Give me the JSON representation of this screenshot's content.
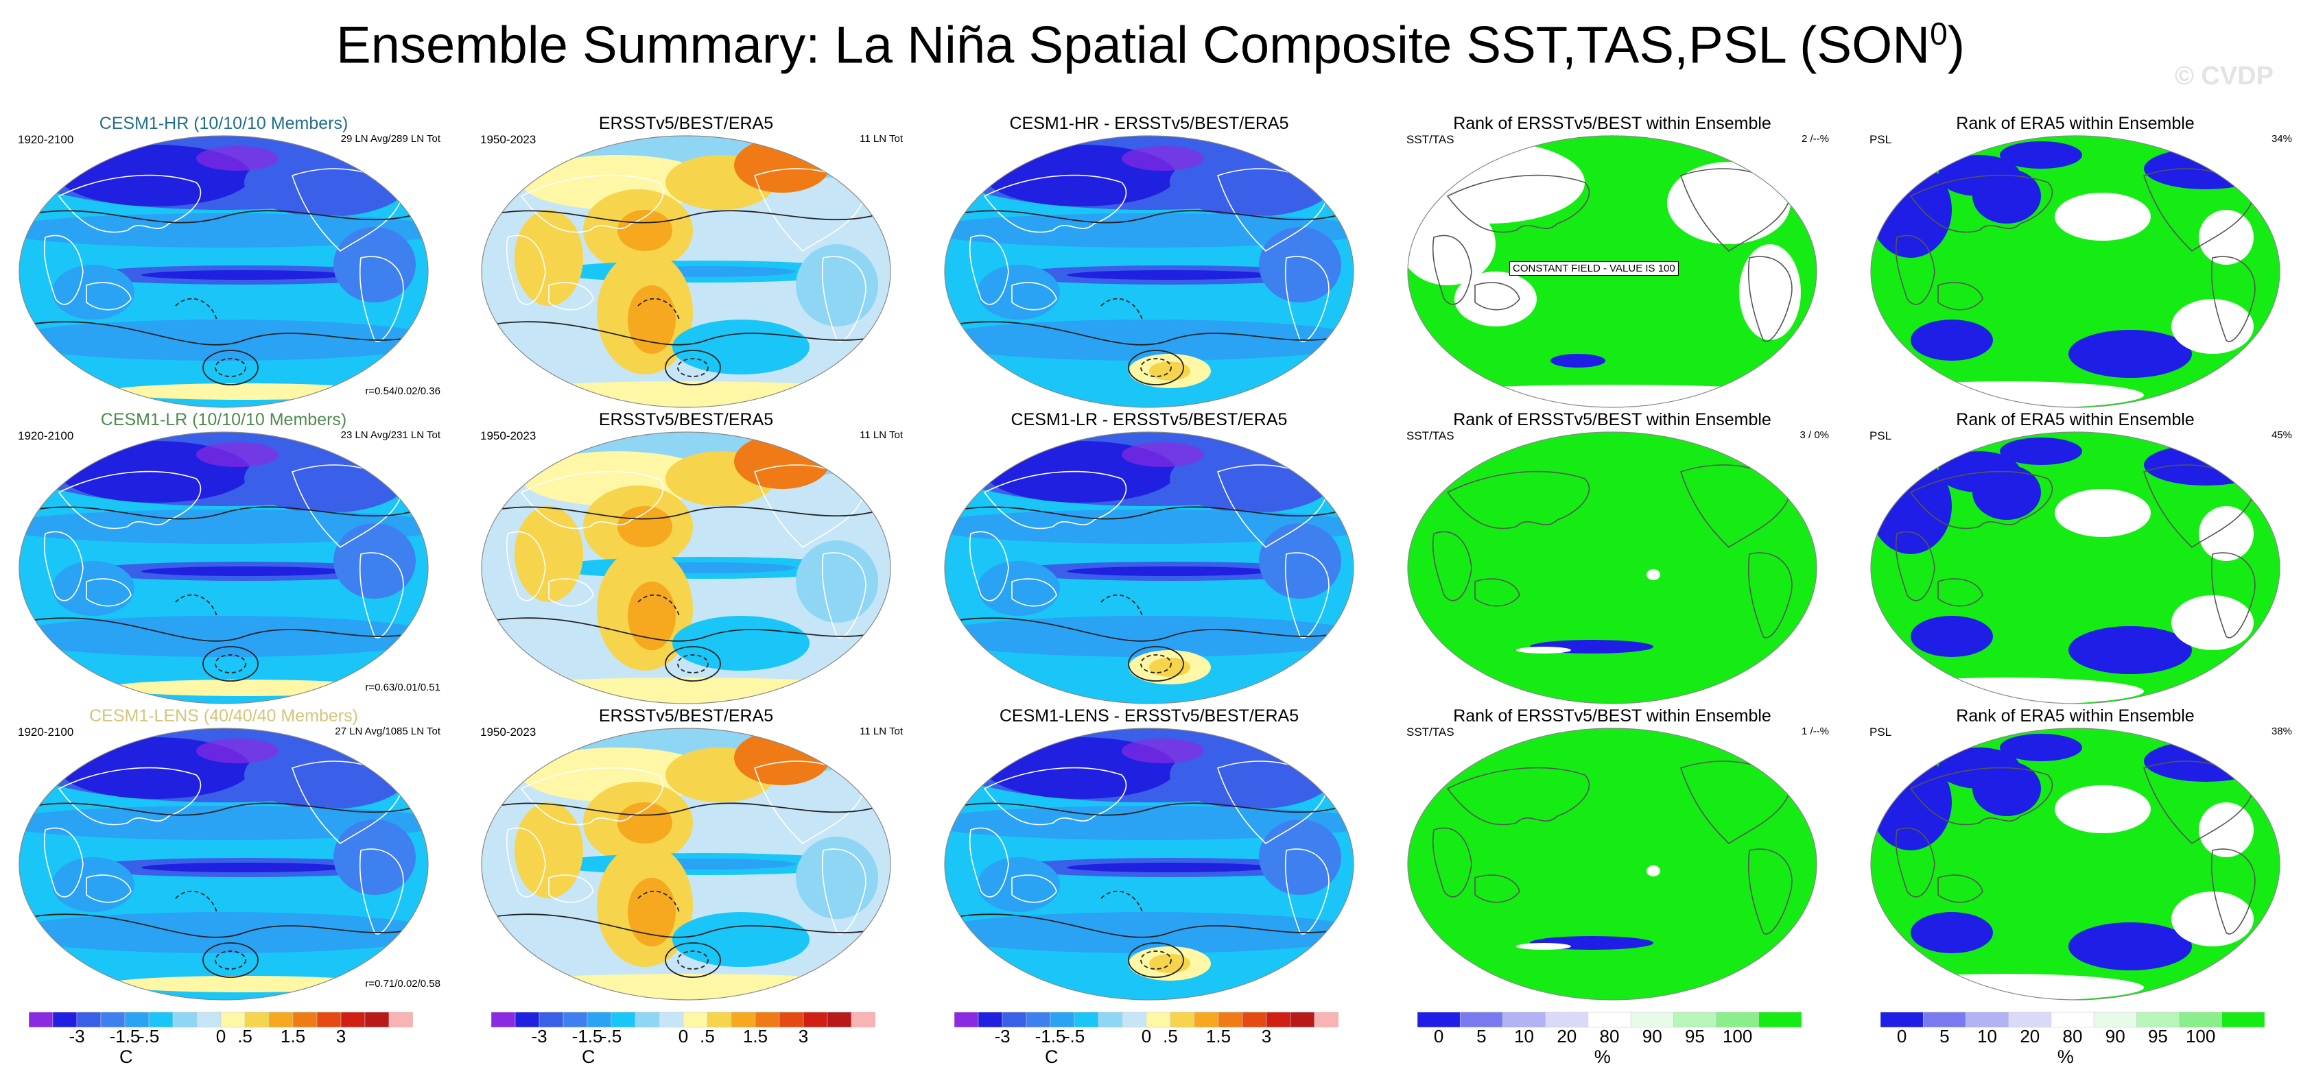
{
  "figure": {
    "title": "Ensemble Summary: La Niña Spatial Composite SST,TAS,PSL (SON",
    "title_sup": "0",
    "title_close": ")",
    "watermark": "© CVDP"
  },
  "panels": [
    {
      "title": "CESM1-HR (10/10/10 Members)",
      "left": "1920-2100",
      "right": "29 LN Avg/289 LN Tot",
      "corr": "r=0.54/0.02/0.36",
      "title_color": "#1f6e8a",
      "map": "anom"
    },
    {
      "title": "ERSSTv5/BEST/ERA5",
      "left": "1950-2023",
      "right": "11 LN Tot",
      "corr": "",
      "title_color": "#000000",
      "map": "obs"
    },
    {
      "title": "CESM1-HR - ERSSTv5/BEST/ERA5",
      "left": "",
      "right": "",
      "corr": "",
      "title_color": "#000000",
      "map": "diff"
    },
    {
      "title": "Rank of ERSSTv5/BEST within Ensemble",
      "left": "SST/TAS",
      "right": "2 /--%",
      "corr": "",
      "title_color": "#000000",
      "map": "rank_const",
      "note": "CONSTANT FIELD - VALUE IS 100"
    },
    {
      "title": "Rank of ERA5 within Ensemble",
      "left": "PSL",
      "right": "34%",
      "corr": "",
      "title_color": "#000000",
      "map": "rank_psl"
    },
    {
      "title": "CESM1-LR (10/10/10 Members)",
      "left": "1920-2100",
      "right": "23 LN Avg/231 LN Tot",
      "corr": "r=0.63/0.01/0.51",
      "title_color": "#4f8a4f",
      "map": "anom"
    },
    {
      "title": "ERSSTv5/BEST/ERA5",
      "left": "1950-2023",
      "right": "11 LN Tot",
      "corr": "",
      "title_color": "#000000",
      "map": "obs"
    },
    {
      "title": "CESM1-LR - ERSSTv5/BEST/ERA5",
      "left": "",
      "right": "",
      "corr": "",
      "title_color": "#000000",
      "map": "diff"
    },
    {
      "title": "Rank of ERSSTv5/BEST within Ensemble",
      "left": "SST/TAS",
      "right": "3 /  0%",
      "corr": "",
      "title_color": "#000000",
      "map": "rank_sst"
    },
    {
      "title": "Rank of ERA5 within Ensemble",
      "left": "PSL",
      "right": "45%",
      "corr": "",
      "title_color": "#000000",
      "map": "rank_psl"
    },
    {
      "title": "CESM1-LENS (40/40/40 Members)",
      "left": "1920-2100",
      "right": "27 LN Avg/1085 LN Tot",
      "corr": "r=0.71/0.02/0.58",
      "title_color": "#d6c47a",
      "map": "anom"
    },
    {
      "title": "ERSSTv5/BEST/ERA5",
      "left": "1950-2023",
      "right": "11 LN Tot",
      "corr": "",
      "title_color": "#000000",
      "map": "obs"
    },
    {
      "title": "CESM1-LENS - ERSSTv5/BEST/ERA5",
      "left": "",
      "right": "",
      "corr": "",
      "title_color": "#000000",
      "map": "diff"
    },
    {
      "title": "Rank of ERSSTv5/BEST within Ensemble",
      "left": "SST/TAS",
      "right": "1 /--%",
      "corr": "",
      "title_color": "#000000",
      "map": "rank_sst"
    },
    {
      "title": "Rank of ERA5 within Ensemble",
      "left": "PSL",
      "right": "38%",
      "corr": "",
      "title_color": "#000000",
      "map": "rank_psl"
    }
  ],
  "colorbars": [
    {
      "kind": "anom",
      "unit": "C"
    },
    {
      "kind": "anom",
      "unit": "C"
    },
    {
      "kind": "anom",
      "unit": "C"
    },
    {
      "kind": "rank",
      "unit": "%"
    },
    {
      "kind": "rank",
      "unit": "%"
    }
  ],
  "chart_data": {
    "type": "heatmap",
    "title": "Ensemble Summary: La Niña Spatial Composite SST,TAS,PSL (SON0)",
    "variables": [
      "SST",
      "TAS",
      "PSL"
    ],
    "season": "SON",
    "anomaly_scale": {
      "unit": "C",
      "tick_labels": [
        "-3",
        "-1.5",
        "-.5",
        "0",
        ".5",
        "1.5",
        "3"
      ],
      "colors": [
        "#8a2be2",
        "#2020e0",
        "#3a5fe8",
        "#3f80f0",
        "#2aa3f5",
        "#19c6f7",
        "#8fd6f5",
        "#c6e6f7",
        "#fdf7a6",
        "#f6d44b",
        "#f6a81e",
        "#f07b16",
        "#e64a14",
        "#d02014",
        "#b81a1a",
        "#f8b4b4"
      ]
    },
    "rank_scale": {
      "unit": "%",
      "tick_labels": [
        "0",
        "5",
        "10",
        "20",
        "80",
        "90",
        "95",
        "100"
      ],
      "colors": [
        "#1e1ee6",
        "#7a7af0",
        "#b2b2f4",
        "#dadaf8",
        "#ffffff",
        "#e8fbe8",
        "#b8f5b8",
        "#8aee8a",
        "#14ec14"
      ]
    },
    "panel_stats": [
      {
        "model": "CESM1-HR",
        "members": "10/10/10",
        "years": "1920-2100",
        "events": "29 LN Avg/289 LN Tot",
        "pattern_corr": [
          0.54,
          0.02,
          0.36
        ],
        "obs_rank_sst_tas": "2 /--%",
        "obs_rank_psl_pct": 34
      },
      {
        "model": "CESM1-LR",
        "members": "10/10/10",
        "years": "1920-2100",
        "events": "23 LN Avg/231 LN Tot",
        "pattern_corr": [
          0.63,
          0.01,
          0.51
        ],
        "obs_rank_sst_tas": "3 /  0%",
        "obs_rank_psl_pct": 45
      },
      {
        "model": "CESM1-LENS",
        "members": "40/40/40",
        "years": "1920-2100",
        "events": "27 LN Avg/1085 LN Tot",
        "pattern_corr": [
          0.71,
          0.02,
          0.58
        ],
        "obs_rank_sst_tas": "1 /--%",
        "obs_rank_psl_pct": 38
      }
    ],
    "observations": {
      "name": "ERSSTv5/BEST/ERA5",
      "years": "1950-2023",
      "events": "11 LN Tot"
    }
  }
}
